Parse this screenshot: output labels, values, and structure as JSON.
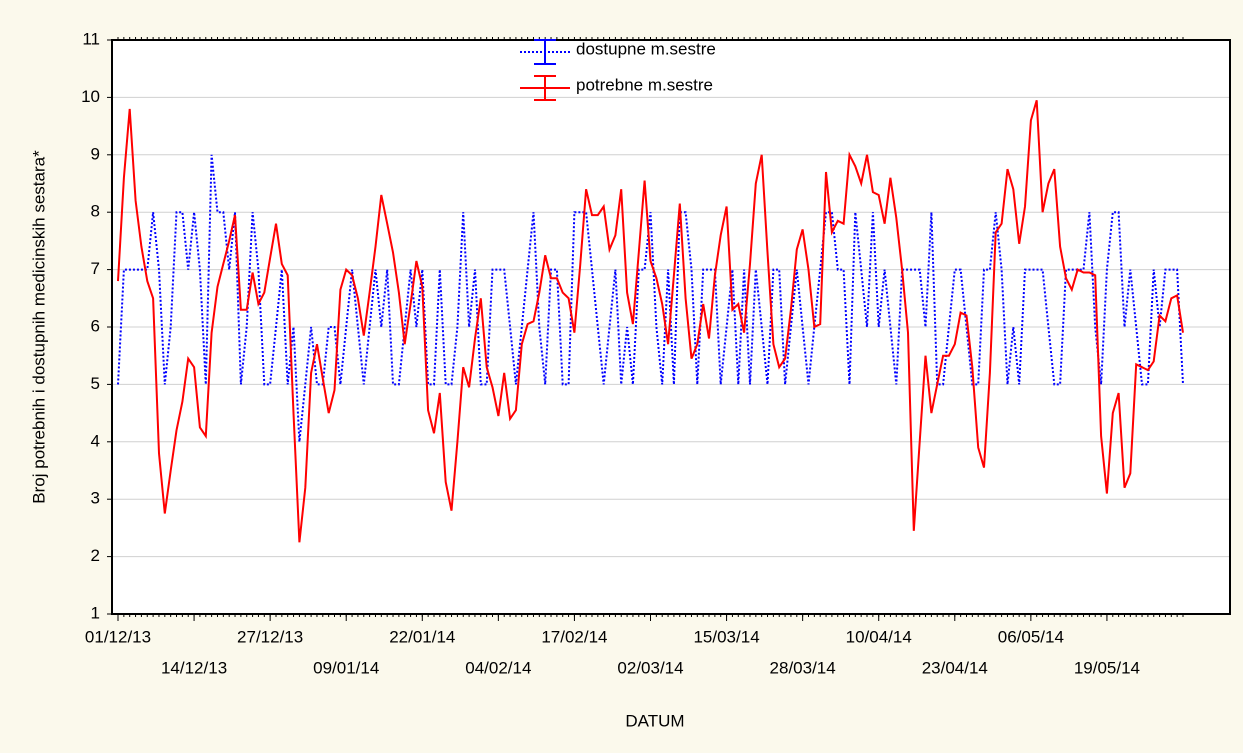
{
  "chart_data": {
    "type": "line",
    "x_label": "DATUM",
    "y_label": "Broj potrebnih i dostupnih medicinskih sestara*",
    "ylim": [
      1,
      11
    ],
    "yticks": [
      1,
      2,
      3,
      4,
      5,
      6,
      7,
      8,
      9,
      10,
      11
    ],
    "grid": true,
    "legend": "top",
    "x": [
      "01/12/13",
      "02/12/13",
      "03/12/13",
      "04/12/13",
      "05/12/13",
      "06/12/13",
      "07/12/13",
      "08/12/13",
      "09/12/13",
      "10/12/13",
      "11/12/13",
      "12/12/13",
      "13/12/13",
      "14/12/13",
      "15/12/13",
      "16/12/13",
      "17/12/13",
      "18/12/13",
      "19/12/13",
      "20/12/13",
      "21/12/13",
      "22/12/13",
      "23/12/13",
      "24/12/13",
      "25/12/13",
      "26/12/13",
      "27/12/13",
      "28/12/13",
      "29/12/13",
      "30/12/13",
      "31/12/13",
      "01/01/14",
      "02/01/14",
      "03/01/14",
      "04/01/14",
      "05/01/14",
      "06/01/14",
      "07/01/14",
      "08/01/14",
      "09/01/14",
      "10/01/14",
      "11/01/14",
      "12/01/14",
      "13/01/14",
      "14/01/14",
      "15/01/14",
      "16/01/14",
      "17/01/14",
      "18/01/14",
      "19/01/14",
      "20/01/14",
      "21/01/14",
      "22/01/14",
      "23/01/14",
      "24/01/14",
      "25/01/14",
      "26/01/14",
      "27/01/14",
      "28/01/14",
      "29/01/14",
      "30/01/14",
      "31/01/14",
      "01/02/14",
      "02/02/14",
      "03/02/14",
      "04/02/14",
      "05/02/14",
      "06/02/14",
      "07/02/14",
      "08/02/14",
      "09/02/14",
      "10/02/14",
      "11/02/14",
      "12/02/14",
      "13/02/14",
      "14/02/14",
      "15/02/14",
      "16/02/14",
      "17/02/14",
      "18/02/14",
      "19/02/14",
      "20/02/14",
      "21/02/14",
      "22/02/14",
      "23/02/14",
      "24/02/14",
      "25/02/14",
      "26/02/14",
      "27/02/14",
      "28/02/14",
      "01/03/14",
      "02/03/14",
      "03/03/14",
      "04/03/14",
      "05/03/14",
      "06/03/14",
      "07/03/14",
      "08/03/14",
      "09/03/14",
      "10/03/14",
      "11/03/14",
      "12/03/14",
      "13/03/14",
      "14/03/14",
      "15/03/14",
      "16/03/14",
      "17/03/14",
      "18/03/14",
      "19/03/14",
      "20/03/14",
      "21/03/14",
      "22/03/14",
      "23/03/14",
      "24/03/14",
      "25/03/14",
      "26/03/14",
      "27/03/14",
      "28/03/14",
      "29/03/14",
      "30/03/14",
      "31/03/14",
      "01/04/14",
      "02/04/14",
      "03/04/14",
      "04/04/14",
      "05/04/14",
      "06/04/14",
      "07/04/14",
      "08/04/14",
      "09/04/14",
      "10/04/14",
      "11/04/14",
      "12/04/14",
      "13/04/14",
      "14/04/14",
      "15/04/14",
      "16/04/14",
      "17/04/14",
      "18/04/14",
      "19/04/14",
      "20/04/14",
      "21/04/14",
      "22/04/14",
      "23/04/14",
      "24/04/14",
      "25/04/14",
      "26/04/14",
      "27/04/14",
      "28/04/14",
      "29/04/14",
      "30/04/14",
      "01/05/14",
      "02/05/14",
      "03/05/14",
      "04/05/14",
      "05/05/14",
      "06/05/14",
      "07/05/14",
      "08/05/14",
      "09/05/14",
      "10/05/14",
      "11/05/14",
      "12/05/14",
      "13/05/14",
      "14/05/14",
      "15/05/14",
      "16/05/14",
      "17/05/14",
      "18/05/14",
      "19/05/14",
      "20/05/14",
      "21/05/14",
      "22/05/14",
      "23/05/14",
      "24/05/14",
      "25/05/14",
      "26/05/14",
      "27/05/14",
      "28/05/14",
      "29/05/14",
      "30/05/14",
      "31/05/14",
      "01/06/14"
    ],
    "xticks": [
      "01/12/13",
      "14/12/13",
      "27/12/13",
      "09/01/14",
      "22/01/14",
      "04/02/14",
      "17/02/14",
      "02/03/14",
      "15/03/14",
      "28/03/14",
      "10/04/14",
      "23/04/14",
      "06/05/14",
      "19/05/14"
    ],
    "series": [
      {
        "name": "dostupne m.sestre",
        "color": "#0000ff",
        "style": "dotted",
        "values": [
          5,
          7,
          7,
          7,
          7,
          7,
          8,
          7,
          5,
          6,
          8,
          8,
          7,
          8,
          7,
          5,
          9,
          8,
          8,
          7,
          8,
          5,
          6,
          8,
          7,
          5,
          5,
          6,
          7,
          5,
          6,
          4,
          5,
          6,
          5,
          5,
          6,
          6,
          5,
          6,
          7,
          6,
          5,
          6,
          7,
          6,
          7,
          5,
          5,
          6,
          7,
          6,
          7,
          5,
          5,
          7,
          5,
          5,
          6,
          8,
          6,
          7,
          5,
          5,
          7,
          7,
          7,
          6,
          5,
          6,
          7,
          8,
          6,
          5,
          7,
          7,
          5,
          5,
          8,
          8,
          8,
          7,
          6,
          5,
          6,
          7,
          5,
          6,
          5,
          7,
          7,
          8,
          6,
          5,
          7,
          5,
          8,
          8,
          7,
          5,
          7,
          7,
          7,
          5,
          6,
          7,
          5,
          7,
          5,
          7,
          6,
          5,
          7,
          7,
          5,
          6,
          7,
          6,
          5,
          6,
          7,
          8,
          8,
          7,
          7,
          5,
          8,
          7,
          6,
          8,
          6,
          7,
          6,
          5,
          7,
          7,
          7,
          7,
          6,
          8,
          5,
          5,
          6,
          7,
          7,
          6,
          5,
          5,
          7,
          7,
          8,
          7,
          5,
          6,
          5,
          7,
          7,
          7,
          7,
          6,
          5,
          5,
          7,
          7,
          7,
          7,
          8,
          6,
          5,
          7,
          8,
          8,
          6,
          7,
          6,
          5,
          5,
          7,
          6,
          7,
          7,
          7,
          5
        ]
      },
      {
        "name": "potrebne m.sestre",
        "color": "#ff0000",
        "style": "solid",
        "values": [
          6.8,
          8.6,
          9.8,
          8.2,
          7.4,
          6.8,
          6.5,
          3.8,
          2.75,
          3.5,
          4.2,
          4.7,
          5.45,
          5.3,
          4.25,
          4.1,
          5.9,
          6.7,
          7.1,
          7.5,
          7.95,
          6.3,
          6.3,
          6.95,
          6.4,
          6.6,
          7.2,
          7.8,
          7.1,
          6.9,
          4.5,
          2.25,
          3.2,
          5.2,
          5.7,
          5.1,
          4.5,
          4.9,
          6.65,
          7.0,
          6.9,
          6.5,
          5.85,
          6.6,
          7.4,
          8.3,
          7.8,
          7.3,
          6.6,
          5.7,
          6.4,
          7.15,
          6.7,
          4.55,
          4.15,
          4.85,
          3.3,
          2.8,
          4.0,
          5.3,
          4.95,
          5.8,
          6.5,
          5.3,
          4.95,
          4.45,
          5.2,
          4.4,
          4.55,
          5.7,
          6.05,
          6.1,
          6.6,
          7.25,
          6.85,
          6.85,
          6.6,
          6.5,
          5.9,
          7.1,
          8.4,
          7.95,
          7.95,
          8.1,
          7.35,
          7.6,
          8.4,
          6.6,
          6.05,
          7.3,
          8.55,
          7.15,
          6.85,
          6.4,
          5.7,
          6.9,
          8.15,
          6.5,
          5.45,
          5.7,
          6.4,
          5.8,
          6.9,
          7.6,
          8.1,
          6.3,
          6.4,
          5.9,
          7.1,
          8.5,
          9.0,
          7.3,
          5.7,
          5.3,
          5.45,
          6.3,
          7.35,
          7.7,
          7.0,
          6.0,
          6.05,
          8.7,
          7.65,
          7.85,
          7.8,
          9.0,
          8.8,
          8.5,
          9.0,
          8.35,
          8.3,
          7.8,
          8.6,
          7.9,
          7.0,
          5.9,
          2.45,
          4.0,
          5.5,
          4.5,
          5.0,
          5.5,
          5.5,
          5.7,
          6.25,
          6.2,
          5.3,
          3.9,
          3.55,
          5.2,
          7.65,
          7.8,
          8.75,
          8.4,
          7.45,
          8.1,
          9.6,
          9.95,
          8.0,
          8.5,
          8.75,
          7.4,
          6.85,
          6.65,
          7.0,
          6.95,
          6.95,
          6.9,
          4.1,
          3.1,
          4.5,
          4.85,
          3.2,
          3.45,
          5.35,
          5.3,
          5.25,
          5.4,
          6.2,
          6.1,
          6.5,
          6.55,
          5.9
        ]
      }
    ]
  }
}
